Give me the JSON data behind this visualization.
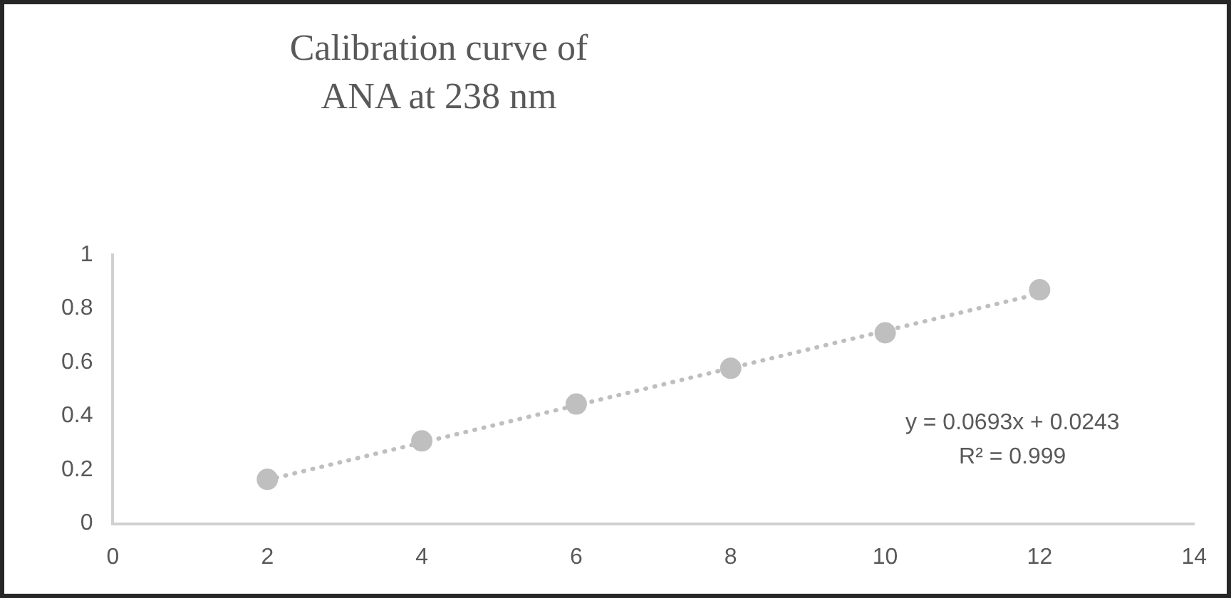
{
  "chart_data": {
    "type": "scatter",
    "title": "Calibration curve of ANA at 238 nm",
    "series": [
      {
        "type": "scatter",
        "color": "#bfbfbf",
        "x": [
          2,
          4,
          6,
          8,
          10,
          12
        ],
        "values": [
          0.165,
          0.308,
          0.445,
          0.578,
          0.71,
          0.87
        ]
      },
      {
        "type": "line",
        "color": "#bfbfbf",
        "x": [
          2,
          12
        ],
        "values": [
          0.163,
          0.856
        ],
        "marker": "none",
        "line_style": "dotted"
      }
    ],
    "annotations": [
      "y = 0.0693x + 0.0243",
      "R² = 0.999"
    ],
    "xlim": [
      0,
      14
    ],
    "xticks": [
      0,
      2,
      4,
      6,
      8,
      10,
      12,
      14
    ],
    "ylim": [
      0,
      1
    ],
    "yticks": [
      0,
      0.2,
      0.4,
      0.6,
      0.8,
      1
    ],
    "grid": false,
    "legend": false,
    "marker": "circle"
  }
}
